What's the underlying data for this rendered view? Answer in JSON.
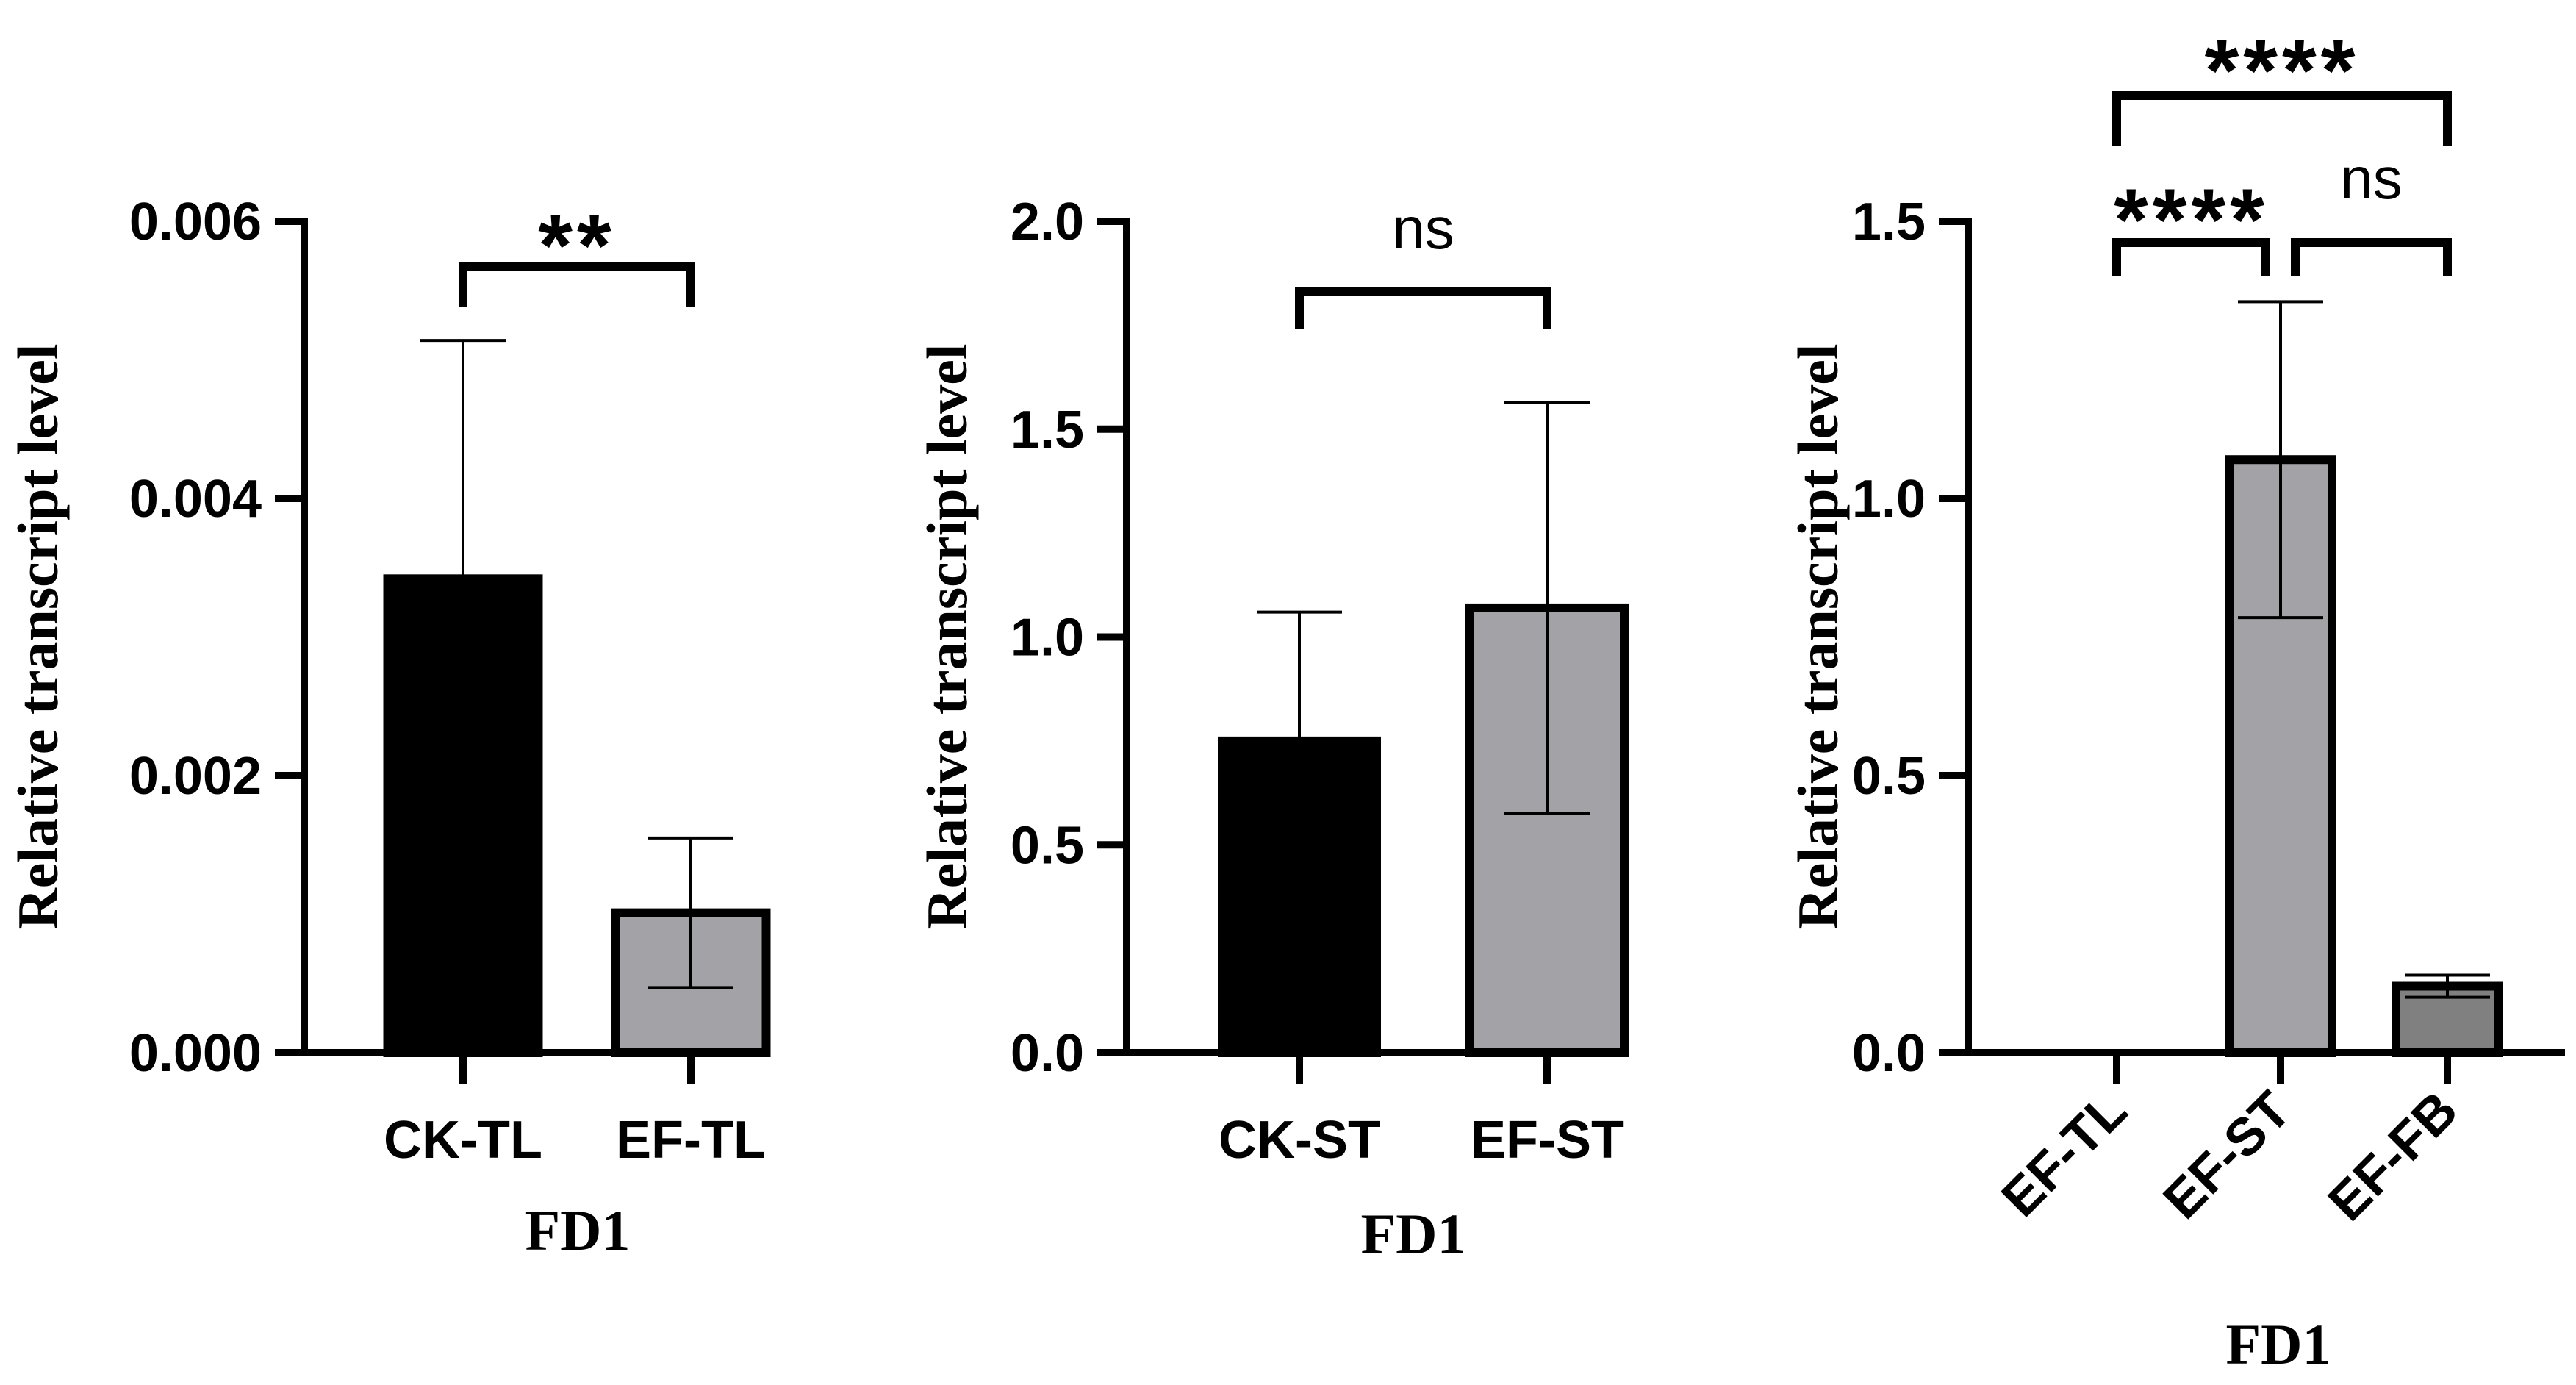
{
  "chart_data": [
    {
      "type": "bar",
      "title": "",
      "xlabel": "FD1",
      "ylabel": "Relative transcript level",
      "ylim": [
        0,
        0.006
      ],
      "yticks": [
        "0.000",
        "0.002",
        "0.004",
        "0.006"
      ],
      "categories": [
        "CK-TL",
        "EF-TL"
      ],
      "values": [
        0.00342,
        0.00101
      ],
      "errors": [
        0.00172,
        0.00054
      ],
      "bar_colors": [
        "#000000",
        "#a3a3a7"
      ],
      "comparisons": [
        {
          "from": 0,
          "to": 1,
          "label": "**"
        }
      ]
    },
    {
      "type": "bar",
      "title": "",
      "xlabel": "FD1",
      "ylabel": "Relative transcript level",
      "ylim": [
        0,
        2.0
      ],
      "yticks": [
        "0.0",
        "0.5",
        "1.0",
        "1.5",
        "2.0"
      ],
      "categories": [
        "CK-ST",
        "EF-ST"
      ],
      "values": [
        0.75,
        1.07
      ],
      "errors": [
        0.31,
        0.495
      ],
      "bar_colors": [
        "#000000",
        "#a3a3a7"
      ],
      "comparisons": [
        {
          "from": 0,
          "to": 1,
          "label": "ns"
        }
      ]
    },
    {
      "type": "bar",
      "title": "",
      "xlabel": "FD1",
      "ylabel": "Relative transcript level",
      "ylim": [
        0,
        1.5
      ],
      "yticks": [
        "0.0",
        "0.5",
        "1.0",
        "1.5"
      ],
      "categories": [
        "EF-TL",
        "EF-ST",
        "EF-FB"
      ],
      "values": [
        0.0003,
        1.07,
        0.12
      ],
      "errors": [
        0.0002,
        0.285,
        0.02
      ],
      "bar_colors": [
        "#9f9fa3",
        "#a3a3a7",
        "#808080"
      ],
      "comparisons": [
        {
          "from": 0,
          "to": 1,
          "label": "****"
        },
        {
          "from": 1,
          "to": 2,
          "label": "ns"
        },
        {
          "from": 0,
          "to": 2,
          "label": "****"
        }
      ]
    }
  ]
}
